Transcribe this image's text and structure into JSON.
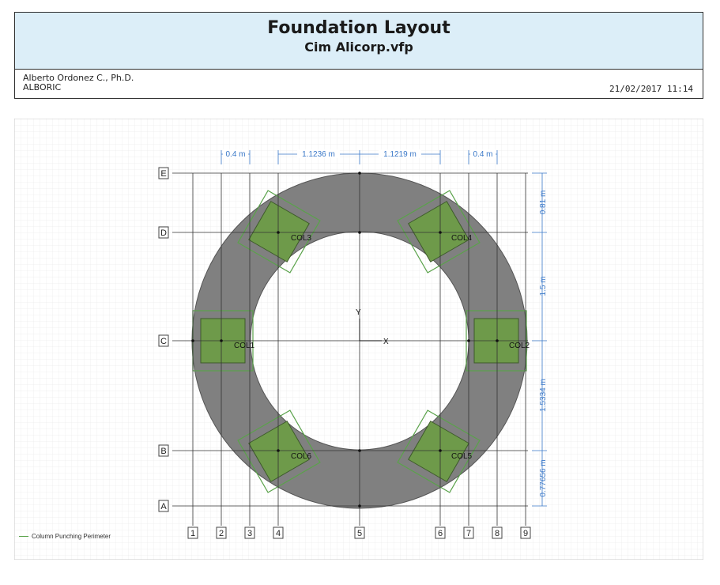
{
  "header": {
    "title": "Foundation Layout",
    "subtitle": "Cim Alicorp.vfp",
    "author": "Alberto Ordonez C., Ph.D.",
    "company": "ALBORIC",
    "datetime": "21/02/2017 11:14"
  },
  "grid_rows": [
    "E",
    "D",
    "C",
    "B",
    "A"
  ],
  "grid_cols": [
    "1",
    "2",
    "3",
    "4",
    "5",
    "6",
    "7",
    "8",
    "9"
  ],
  "dimensions_top": [
    "0.4 m",
    "1.1236 m",
    "1.1219 m",
    "0.4 m"
  ],
  "dimensions_right": [
    "0.81 m",
    "1.5 m",
    "1.5334 m",
    "0.77656 m"
  ],
  "columns": [
    "COL1",
    "COL2",
    "COL3",
    "COL4",
    "COL5",
    "COL6"
  ],
  "axes": {
    "x": "X",
    "y": "Y"
  },
  "legend": {
    "label": "Column Punching Perimeter"
  },
  "colors": {
    "foundation": "#808080",
    "column": "#6e9a4a",
    "punching": "#5aa24a",
    "dimension": "#3a78c8",
    "grid": "#333333"
  }
}
